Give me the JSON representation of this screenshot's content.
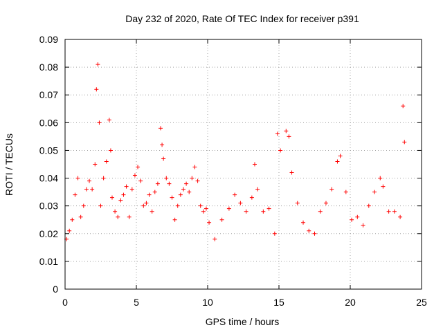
{
  "chart_data": {
    "type": "scatter",
    "title": "Day 232 of 2020, Rate Of TEC Index for receiver p391",
    "xlabel": "GPS time / hours",
    "ylabel": "ROTI / TECUs",
    "xlim": [
      0,
      25
    ],
    "ylim": [
      0,
      0.09
    ],
    "x_ticks": [
      "0",
      "5",
      "10",
      "15",
      "20",
      "25"
    ],
    "y_ticks": [
      "0",
      "0.01",
      "0.02",
      "0.03",
      "0.04",
      "0.05",
      "0.06",
      "0.07",
      "0.08",
      "0.09"
    ],
    "grid": true,
    "marker": "+",
    "point_color": "#ff0000",
    "series": [
      {
        "x": [
          0.1,
          0.3,
          0.5,
          0.7,
          0.9,
          1.1,
          1.3,
          1.5,
          1.7,
          1.9,
          2.1,
          2.2,
          2.3,
          2.4,
          2.5,
          2.7,
          2.9,
          3.1,
          3.2,
          3.3,
          3.5,
          3.7,
          3.9,
          4.1,
          4.3,
          4.5,
          4.7,
          4.9,
          5.1,
          5.3,
          5.5,
          5.7,
          5.9,
          6.1,
          6.3,
          6.5,
          6.7,
          6.8,
          6.9,
          7.1,
          7.3,
          7.5,
          7.7,
          7.9,
          8.1,
          8.3,
          8.5,
          8.7,
          8.9,
          9.1,
          9.3,
          9.5,
          9.7,
          9.9,
          10.1,
          10.5,
          11,
          11.5,
          11.9,
          12.3,
          12.7,
          13.1,
          13.3,
          13.5,
          13.9,
          14.3,
          14.7,
          14.9,
          15.1,
          15.5,
          15.7,
          15.9,
          16.3,
          16.7,
          17.1,
          17.5,
          17.9,
          18.3,
          18.7,
          19.1,
          19.3,
          19.7,
          20.1,
          20.5,
          20.9,
          21.3,
          21.7,
          22.1,
          22.3,
          22.7,
          23.1,
          23.5,
          23.7,
          23.8
        ],
        "y": [
          0.018,
          0.021,
          0.025,
          0.034,
          0.04,
          0.026,
          0.03,
          0.036,
          0.039,
          0.036,
          0.045,
          0.072,
          0.081,
          0.06,
          0.03,
          0.04,
          0.046,
          0.061,
          0.05,
          0.033,
          0.028,
          0.026,
          0.032,
          0.034,
          0.037,
          0.026,
          0.036,
          0.041,
          0.044,
          0.039,
          0.03,
          0.031,
          0.034,
          0.028,
          0.035,
          0.038,
          0.058,
          0.052,
          0.047,
          0.04,
          0.038,
          0.033,
          0.025,
          0.03,
          0.034,
          0.036,
          0.038,
          0.035,
          0.04,
          0.044,
          0.039,
          0.03,
          0.028,
          0.029,
          0.024,
          0.018,
          0.025,
          0.029,
          0.034,
          0.031,
          0.028,
          0.033,
          0.045,
          0.036,
          0.028,
          0.029,
          0.02,
          0.056,
          0.05,
          0.057,
          0.055,
          0.042,
          0.031,
          0.024,
          0.021,
          0.02,
          0.028,
          0.031,
          0.036,
          0.046,
          0.048,
          0.035,
          0.025,
          0.026,
          0.023,
          0.03,
          0.035,
          0.04,
          0.037,
          0.028,
          0.028,
          0.026,
          0.066,
          0.053
        ]
      }
    ]
  }
}
